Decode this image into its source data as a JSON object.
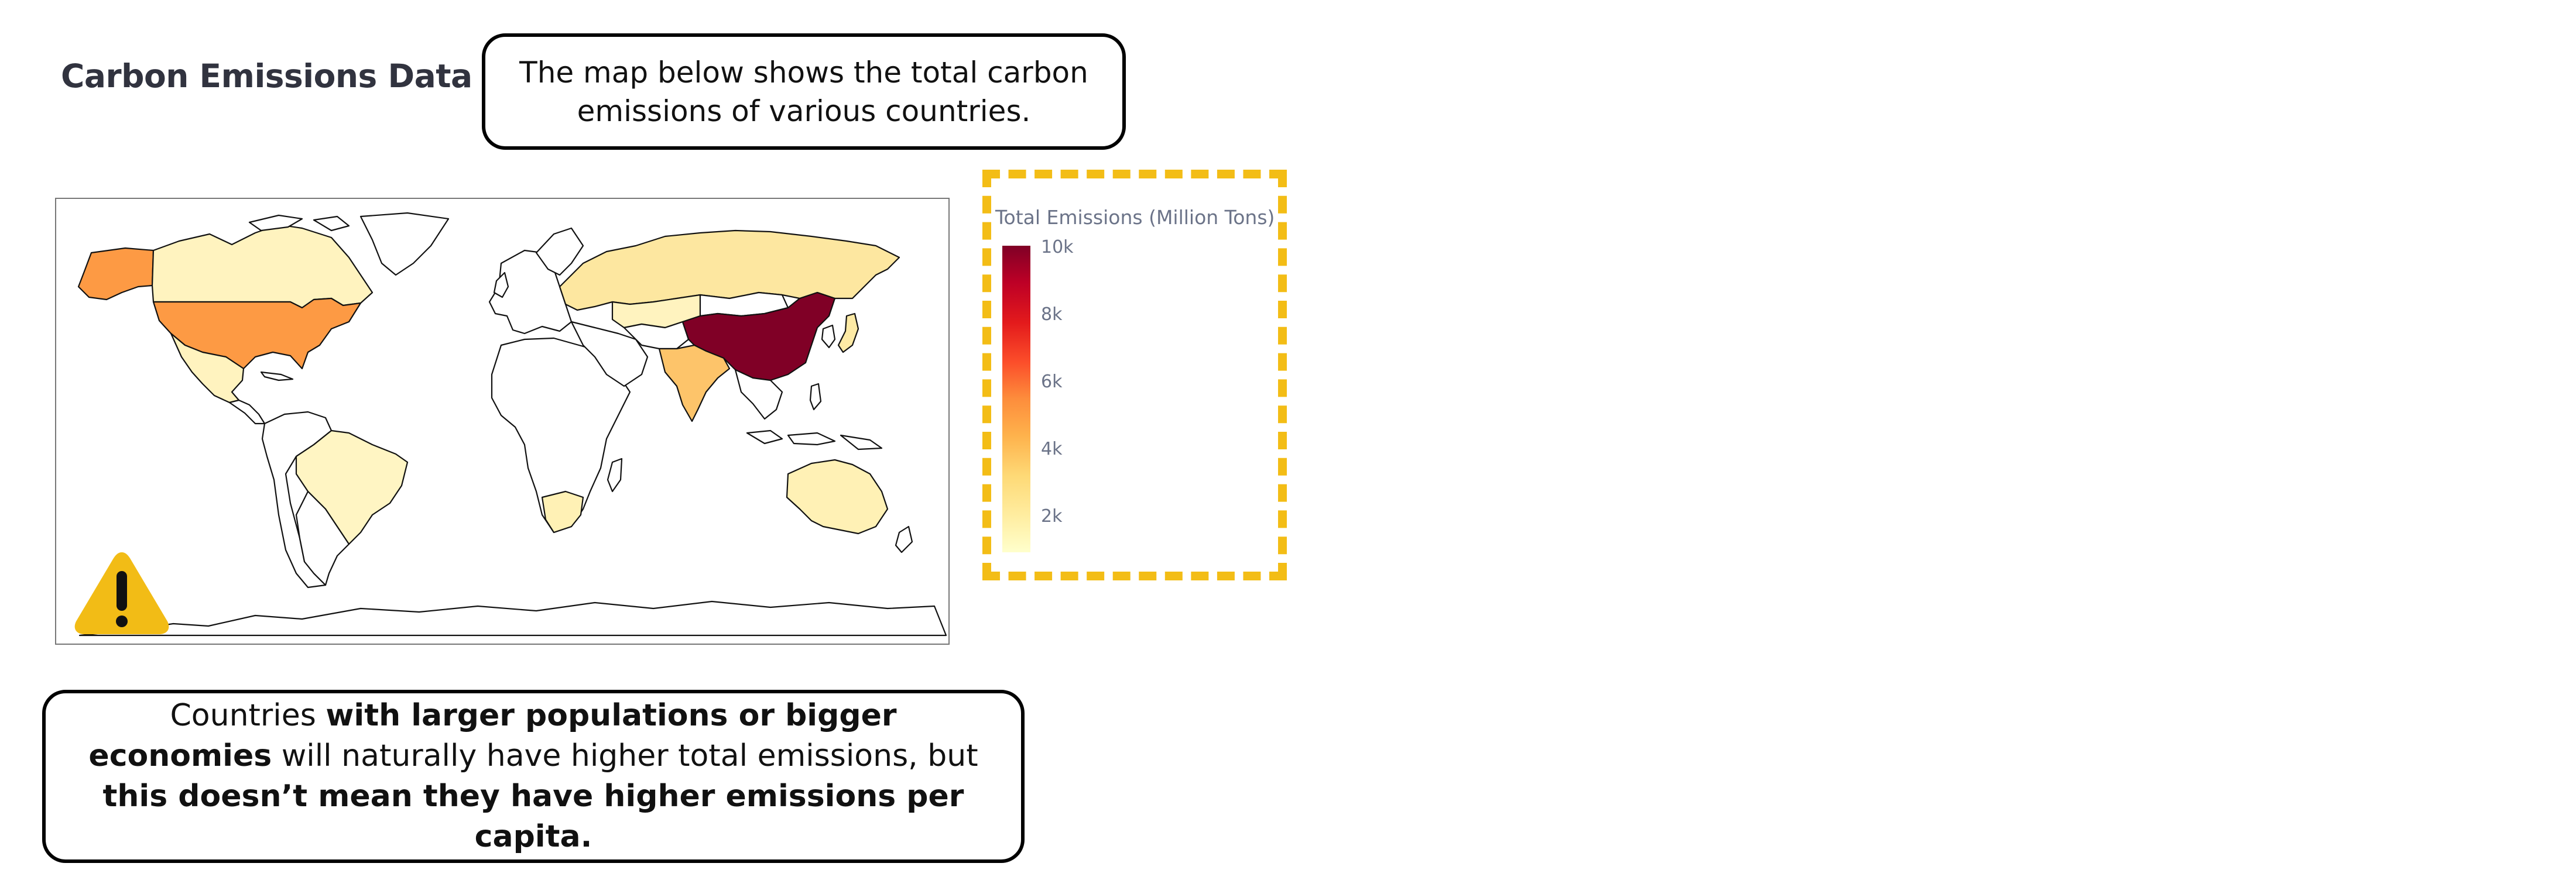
{
  "title": "Carbon Emissions Data",
  "callout_top": "The map below shows the total carbon emissions of various countries.",
  "callout_bottom": {
    "p1": "Countries ",
    "b1": "with larger populations or bigger economies",
    "p2": " will naturally have higher total emissions, but ",
    "b2": "this doesn’t mean they have higher emissions per capita."
  },
  "map": {
    "type": "choropleth",
    "projection": "equirectangular world",
    "colorscale": [
      "#ffffcc",
      "#ffeda0",
      "#fed976",
      "#feb24c",
      "#fd8d3c",
      "#fc4e2a",
      "#e31a1c",
      "#bd0026",
      "#800026"
    ],
    "countries": [
      {
        "name": "China",
        "color": "#800026"
      },
      {
        "name": "United States",
        "color": "#fd9a44"
      },
      {
        "name": "Russia",
        "color": "#fde7a0"
      },
      {
        "name": "India",
        "color": "#fdc46a"
      },
      {
        "name": "Japan",
        "color": "#fdeaa5"
      },
      {
        "name": "Canada",
        "color": "#fff3bf"
      },
      {
        "name": "Mexico",
        "color": "#fff3bf"
      },
      {
        "name": "Brazil",
        "color": "#fff5c3"
      },
      {
        "name": "Australia",
        "color": "#fff1b5"
      },
      {
        "name": "South Africa",
        "color": "#fff1b5"
      },
      {
        "name": "Kazakhstan",
        "color": "#fff3bf"
      },
      {
        "name": "Alaska",
        "color": "#fd9a44"
      }
    ]
  },
  "legend": {
    "title": "Total Emissions (Million Tons)",
    "ticks": [
      "10k",
      "8k",
      "6k",
      "4k",
      "2k"
    ]
  },
  "icons": {
    "warning": "warning-triangle-icon"
  },
  "colors": {
    "legend_border": "#f3bd16",
    "warning_fill": "#f2bc16",
    "title_text": "#31333f",
    "axis_text": "#6b7388"
  }
}
